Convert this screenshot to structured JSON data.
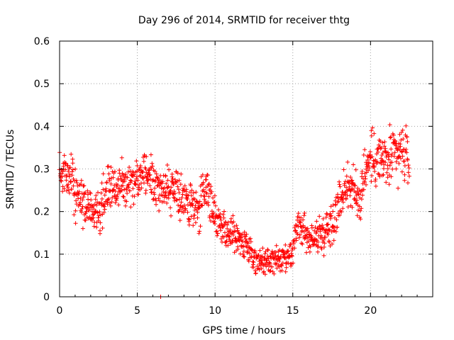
{
  "chart_data": {
    "type": "scatter",
    "title": "Day 296 of 2014, SRMTID for receiver thtg",
    "xlabel": "GPS time / hours",
    "ylabel": "SRMTID / TECUs",
    "xlim": [
      0,
      24
    ],
    "ylim": [
      0,
      0.6
    ],
    "xticks": [
      0,
      5,
      10,
      15,
      20
    ],
    "yticks": [
      0,
      0.1,
      0.2,
      0.3,
      0.4,
      0.5,
      0.6
    ],
    "xtick_labels": [
      "0",
      "5",
      "10",
      "15",
      "20"
    ],
    "ytick_labels": [
      "0",
      "0.1",
      "0.2",
      "0.3",
      "0.4",
      "0.5",
      "0.6"
    ],
    "grid": true,
    "marker": "+",
    "color": "#ff0000",
    "trend": [
      [
        0.0,
        0.3
      ],
      [
        0.3,
        0.3
      ],
      [
        0.8,
        0.27
      ],
      [
        1.2,
        0.23
      ],
      [
        1.8,
        0.21
      ],
      [
        2.2,
        0.2
      ],
      [
        2.6,
        0.19
      ],
      [
        3.0,
        0.25
      ],
      [
        3.4,
        0.25
      ],
      [
        3.8,
        0.26
      ],
      [
        4.2,
        0.27
      ],
      [
        4.6,
        0.27
      ],
      [
        5.0,
        0.28
      ],
      [
        5.4,
        0.3
      ],
      [
        5.8,
        0.28
      ],
      [
        6.2,
        0.27
      ],
      [
        6.6,
        0.26
      ],
      [
        7.0,
        0.25
      ],
      [
        7.5,
        0.24
      ],
      [
        8.0,
        0.23
      ],
      [
        8.5,
        0.21
      ],
      [
        9.0,
        0.2
      ],
      [
        9.4,
        0.27
      ],
      [
        9.8,
        0.2
      ],
      [
        10.2,
        0.18
      ],
      [
        10.6,
        0.16
      ],
      [
        11.0,
        0.15
      ],
      [
        11.5,
        0.14
      ],
      [
        12.0,
        0.12
      ],
      [
        12.5,
        0.09
      ],
      [
        13.0,
        0.08
      ],
      [
        13.5,
        0.08
      ],
      [
        14.0,
        0.09
      ],
      [
        14.5,
        0.08
      ],
      [
        15.0,
        0.1
      ],
      [
        15.3,
        0.17
      ],
      [
        15.8,
        0.15
      ],
      [
        16.2,
        0.13
      ],
      [
        16.6,
        0.14
      ],
      [
        17.0,
        0.15
      ],
      [
        17.5,
        0.18
      ],
      [
        18.0,
        0.22
      ],
      [
        18.4,
        0.26
      ],
      [
        18.8,
        0.26
      ],
      [
        19.2,
        0.22
      ],
      [
        19.6,
        0.29
      ],
      [
        20.0,
        0.32
      ],
      [
        20.5,
        0.33
      ],
      [
        21.0,
        0.31
      ],
      [
        21.5,
        0.33
      ],
      [
        22.0,
        0.34
      ],
      [
        22.5,
        0.32
      ]
    ],
    "spread": [
      [
        0,
        0.07
      ],
      [
        9,
        0.07
      ],
      [
        11,
        0.05
      ],
      [
        14.5,
        0.04
      ],
      [
        17,
        0.06
      ],
      [
        19,
        0.08
      ],
      [
        22.5,
        0.09
      ]
    ],
    "sample_count": 1300,
    "isolated_points": [
      [
        6.5,
        0.0
      ]
    ]
  }
}
